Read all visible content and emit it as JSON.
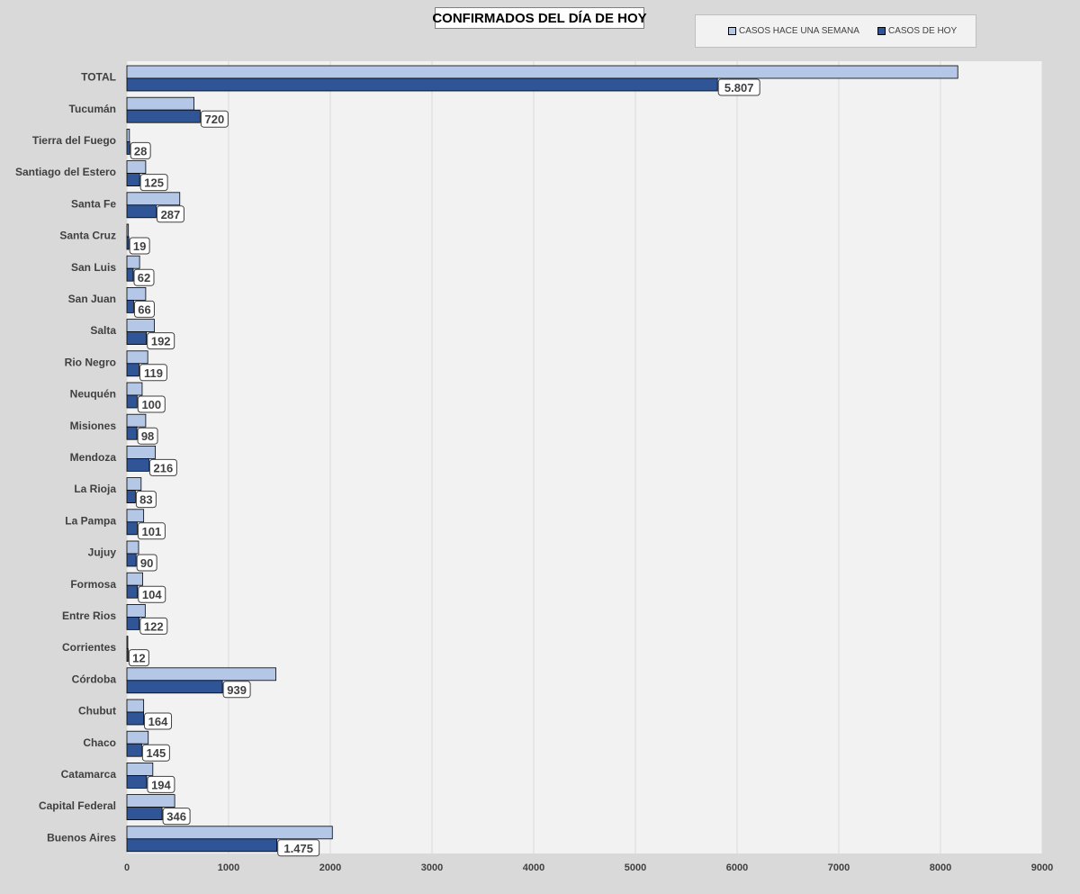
{
  "chart_data": {
    "type": "bar",
    "orientation": "horizontal",
    "title": "CONFIRMADOS DEL DÍA DE HOY",
    "categories": [
      "TOTAL",
      "Tucumán",
      "Tierra del Fuego",
      "Santiago del Estero",
      "Santa Fe",
      "Santa Cruz",
      "San Luis",
      "San Juan",
      "Salta",
      "Rio Negro",
      "Neuquén",
      "Misiones",
      "Mendoza",
      "La Rioja",
      "La Pampa",
      "Jujuy",
      "Formosa",
      "Entre Rios",
      "Corrientes",
      "Córdoba",
      "Chubut",
      "Chaco",
      "Catamarca",
      "Capital Federal",
      "Buenos Aires"
    ],
    "series": [
      {
        "name": "CASOS HACE UNA SEMANA",
        "color": "#b4c7e7",
        "values": [
          8170,
          660,
          25,
          185,
          520,
          15,
          125,
          185,
          270,
          205,
          150,
          185,
          280,
          140,
          165,
          115,
          155,
          180,
          8,
          1465,
          165,
          210,
          255,
          470,
          2020
        ]
      },
      {
        "name": "CASOS DE HOY",
        "color": "#2f5597",
        "values": [
          5807,
          720,
          28,
          125,
          287,
          19,
          62,
          66,
          192,
          119,
          100,
          98,
          216,
          83,
          101,
          90,
          104,
          122,
          12,
          939,
          164,
          145,
          194,
          346,
          1475
        ],
        "labels": [
          "5.807",
          "720",
          "28",
          "125",
          "287",
          "19",
          "62",
          "66",
          "192",
          "119",
          "100",
          "98",
          "216",
          "83",
          "101",
          "90",
          "104",
          "122",
          "12",
          "939",
          "164",
          "145",
          "194",
          "346",
          "1.475"
        ]
      }
    ],
    "xlim": [
      0,
      9000
    ],
    "xticks": [
      0,
      1000,
      2000,
      3000,
      4000,
      5000,
      6000,
      7000,
      8000,
      9000
    ],
    "xlabel": "",
    "ylabel": "",
    "grid": "vertical",
    "legend_position": "top-right"
  }
}
